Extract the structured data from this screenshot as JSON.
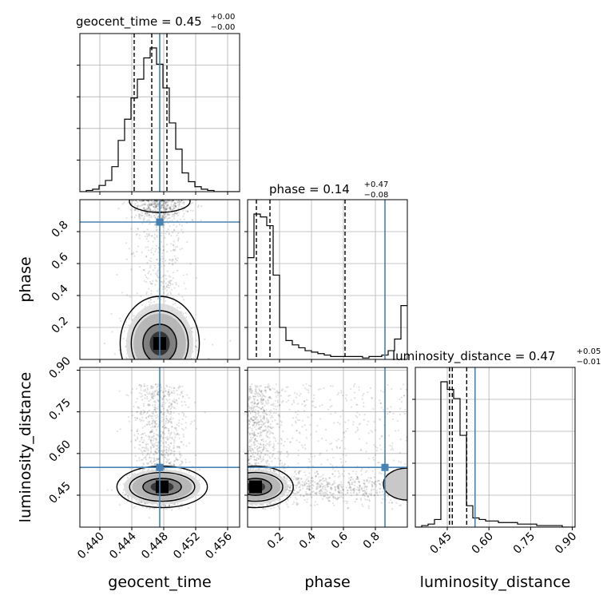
{
  "chart_data": {
    "type": "corner",
    "parameters": [
      "geocent_time",
      "phase",
      "luminosity_distance"
    ],
    "truths": {
      "geocent_time": 0.4475,
      "phase": 0.86,
      "luminosity_distance": 0.55
    },
    "truth_color": "#4682b4",
    "grid": true,
    "titles": [
      {
        "param": "geocent_time",
        "base": "geocent_time = 0.45",
        "plus": "+0.00",
        "minus": "−0.00"
      },
      {
        "param": "phase",
        "base": "phase = 0.14",
        "plus": "+0.47",
        "minus": "−0.08"
      },
      {
        "param": "luminosity_distance",
        "base": "luminosity_distance = 0.47",
        "plus": "+0.05",
        "minus": "−0.01"
      }
    ],
    "axes": {
      "geocent_time": {
        "label": "geocent_time",
        "range": [
          0.4375,
          0.4575
        ],
        "ticks": [
          0.44,
          0.444,
          0.448,
          0.452,
          0.456
        ],
        "tick_labels": [
          "0.440",
          "0.444",
          "0.448",
          "0.452",
          "0.456"
        ]
      },
      "phase": {
        "label": "phase",
        "range": [
          0.0,
          1.0
        ],
        "ticks": [
          0.2,
          0.4,
          0.6,
          0.8
        ],
        "tick_labels": [
          "0.2",
          "0.4",
          "0.6",
          "0.8"
        ]
      },
      "luminosity_distance": {
        "label": "luminosity_distance",
        "range": [
          0.335,
          0.91
        ],
        "ticks": [
          0.45,
          0.6,
          0.75,
          0.9
        ],
        "tick_labels": [
          "0.45",
          "0.60",
          "0.75",
          "0.90"
        ]
      }
    },
    "histograms": [
      {
        "param": "geocent_time",
        "edges": [
          0.4375,
          0.4383,
          0.4391,
          0.4399,
          0.4407,
          0.4415,
          0.4423,
          0.4431,
          0.4439,
          0.4447,
          0.4455,
          0.4463,
          0.4471,
          0.4479,
          0.4487,
          0.4495,
          0.4503,
          0.4511,
          0.4519,
          0.4527,
          0.4535,
          0.4543,
          0.4551,
          0.4559,
          0.4567,
          0.4575
        ],
        "counts": [
          0,
          1,
          2,
          5,
          9,
          20,
          41,
          58,
          75,
          90,
          107,
          115,
          102,
          83,
          55,
          34,
          15,
          8,
          4,
          2,
          1,
          0,
          0,
          0,
          0
        ],
        "quantiles": [
          0.4443,
          0.4465,
          0.4484
        ]
      },
      {
        "param": "phase",
        "edges": [
          0.0,
          0.04,
          0.08,
          0.12,
          0.16,
          0.2,
          0.24,
          0.28,
          0.32,
          0.36,
          0.4,
          0.44,
          0.48,
          0.52,
          0.56,
          0.6,
          0.64,
          0.68,
          0.72,
          0.76,
          0.8,
          0.84,
          0.88,
          0.92,
          0.96,
          1.0
        ],
        "counts": [
          70,
          100,
          98,
          92,
          58,
          22,
          13,
          10,
          8,
          6,
          5,
          4,
          3,
          2,
          2,
          2,
          2,
          2,
          1,
          2,
          2,
          3,
          6,
          14,
          37
        ],
        "quantiles": [
          0.055,
          0.14,
          0.61
        ]
      },
      {
        "param": "luminosity_distance",
        "edges": [
          0.335,
          0.358,
          0.381,
          0.404,
          0.427,
          0.45,
          0.473,
          0.496,
          0.519,
          0.542,
          0.565,
          0.588,
          0.611,
          0.634,
          0.657,
          0.68,
          0.703,
          0.726,
          0.749,
          0.772,
          0.795,
          0.818,
          0.841,
          0.864,
          0.887,
          0.91
        ],
        "counts": [
          0,
          1,
          2,
          5,
          95,
          90,
          84,
          60,
          14,
          6,
          5,
          4,
          4,
          3,
          3,
          3,
          2,
          2,
          2,
          1,
          1,
          1,
          1,
          0,
          0
        ],
        "quantiles": [
          0.458,
          0.468,
          0.52
        ]
      }
    ],
    "density": {
      "phase_vs_geocent_time": {
        "mode": [
          0.4475,
          0.1
        ],
        "secondary": [
          0.4475,
          0.95
        ]
      },
      "luminosity_distance_vs_geocent_time": {
        "mode": [
          0.4478,
          0.48
        ]
      },
      "luminosity_distance_vs_phase": {
        "mode": [
          0.05,
          0.48
        ],
        "secondary": [
          0.98,
          0.49
        ]
      }
    }
  }
}
